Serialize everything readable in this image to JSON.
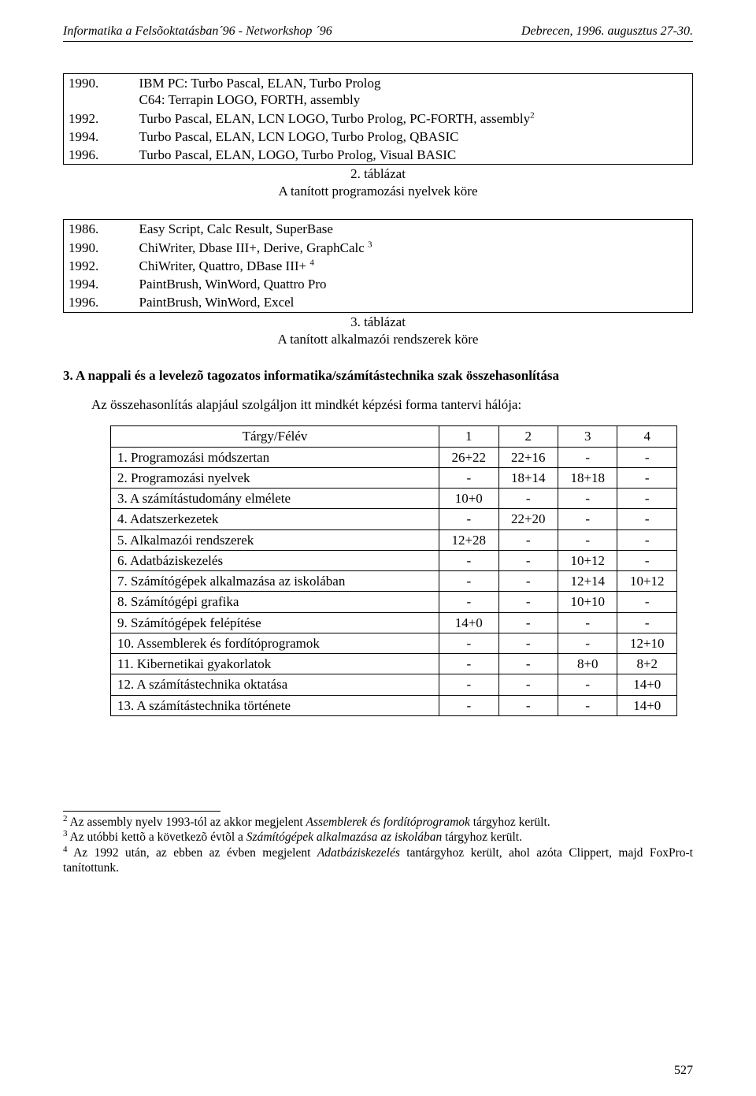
{
  "header": {
    "left": "Informatika a Felsõoktatásban´96 - Networkshop ´96",
    "right": "Debrecen, 1996. augusztus 27-30."
  },
  "table2": {
    "rows": [
      {
        "year": "1990.",
        "text": "IBM PC: Turbo Pascal, ELAN, Turbo Prolog\nC64: Terrapin LOGO, FORTH, assembly"
      },
      {
        "year": "1992.",
        "text": "Turbo Pascal, ELAN, LCN LOGO, Turbo Prolog, PC-FORTH, assembly",
        "sup": "2"
      },
      {
        "year": "1994.",
        "text": "Turbo Pascal, ELAN, LCN LOGO, Turbo Prolog, QBASIC"
      },
      {
        "year": "1996.",
        "text": "Turbo Pascal, ELAN, LOGO, Turbo Prolog, Visual BASIC"
      }
    ],
    "caption_top": "2. táblázat",
    "caption_bottom": "A tanított programozási nyelvek köre"
  },
  "table3": {
    "rows": [
      {
        "year": "1986.",
        "text": "Easy Script, Calc Result, SuperBase"
      },
      {
        "year": "1990.",
        "text": "ChiWriter, Dbase III+, Derive, GraphCalc ",
        "sup": "3"
      },
      {
        "year": "1992.",
        "text": "ChiWriter, Quattro, DBase III+ ",
        "sup": "4"
      },
      {
        "year": "1994.",
        "text": "PaintBrush, WinWord, Quattro Pro"
      },
      {
        "year": "1996.",
        "text": "PaintBrush, WinWord, Excel"
      }
    ],
    "caption_top": "3. táblázat",
    "caption_bottom": "A tanított alkalmazói rendszerek köre"
  },
  "section3": {
    "heading": "3. A nappali és a levelezõ tagozatos informatika/számítástechnika szak összehasonlítása",
    "intro": "Az összehasonlítás alapjául szolgáljon itt mindkét képzési forma tantervi hálója:"
  },
  "curriculum": {
    "header": [
      "Tárgy/Félév",
      "1",
      "2",
      "3",
      "4"
    ],
    "rows": [
      [
        "1.  Programozási módszertan",
        "26+22",
        "22+16",
        "-",
        "-"
      ],
      [
        "2.  Programozási nyelvek",
        "-",
        "18+14",
        "18+18",
        "-"
      ],
      [
        "3.  A számítástudomány elmélete",
        "10+0",
        "-",
        "-",
        "-"
      ],
      [
        "4.  Adatszerkezetek",
        "-",
        "22+20",
        "-",
        "-"
      ],
      [
        "5.  Alkalmazói rendszerek",
        "12+28",
        "-",
        "-",
        "-"
      ],
      [
        "6.  Adatbáziskezelés",
        "-",
        "-",
        "10+12",
        "-"
      ],
      [
        "7.  Számítógépek alkalmazása az iskolában",
        "-",
        "-",
        "12+14",
        "10+12"
      ],
      [
        "8.  Számítógépi grafika",
        "-",
        "-",
        "10+10",
        "-"
      ],
      [
        "9.  Számítógépek felépítése",
        "14+0",
        "-",
        "-",
        "-"
      ],
      [
        "10.  Assemblerek és fordítóprogramok",
        "-",
        "-",
        "-",
        "12+10"
      ],
      [
        "11.  Kibernetikai gyakorlatok",
        "-",
        "-",
        "8+0",
        "8+2"
      ],
      [
        "12.  A számítástechnika oktatása",
        "-",
        "-",
        "-",
        "14+0"
      ],
      [
        "13.  A számítástechnika története",
        "-",
        "-",
        "-",
        "14+0"
      ]
    ]
  },
  "footnotes": {
    "fn2_pre": "Az assembly nyelv 1993-tól az akkor megjelent ",
    "fn2_ital": "Assemblerek és fordítóprogramok ",
    "fn2_post": "tárgyhoz került.",
    "fn3_pre": "Az utóbbi kettõ a következõ évtõl a ",
    "fn3_ital": "Számítógépek alkalmazása az iskolában ",
    "fn3_post": "tárgyhoz került.",
    "fn4_pre": "Az 1992 után, az ebben az évben megjelent ",
    "fn4_ital": "Adatbáziskezelés",
    "fn4_post": " tantárgyhoz került, ahol azóta Clippert, majd FoxPro-t tanítottunk."
  },
  "pagenum": "527"
}
